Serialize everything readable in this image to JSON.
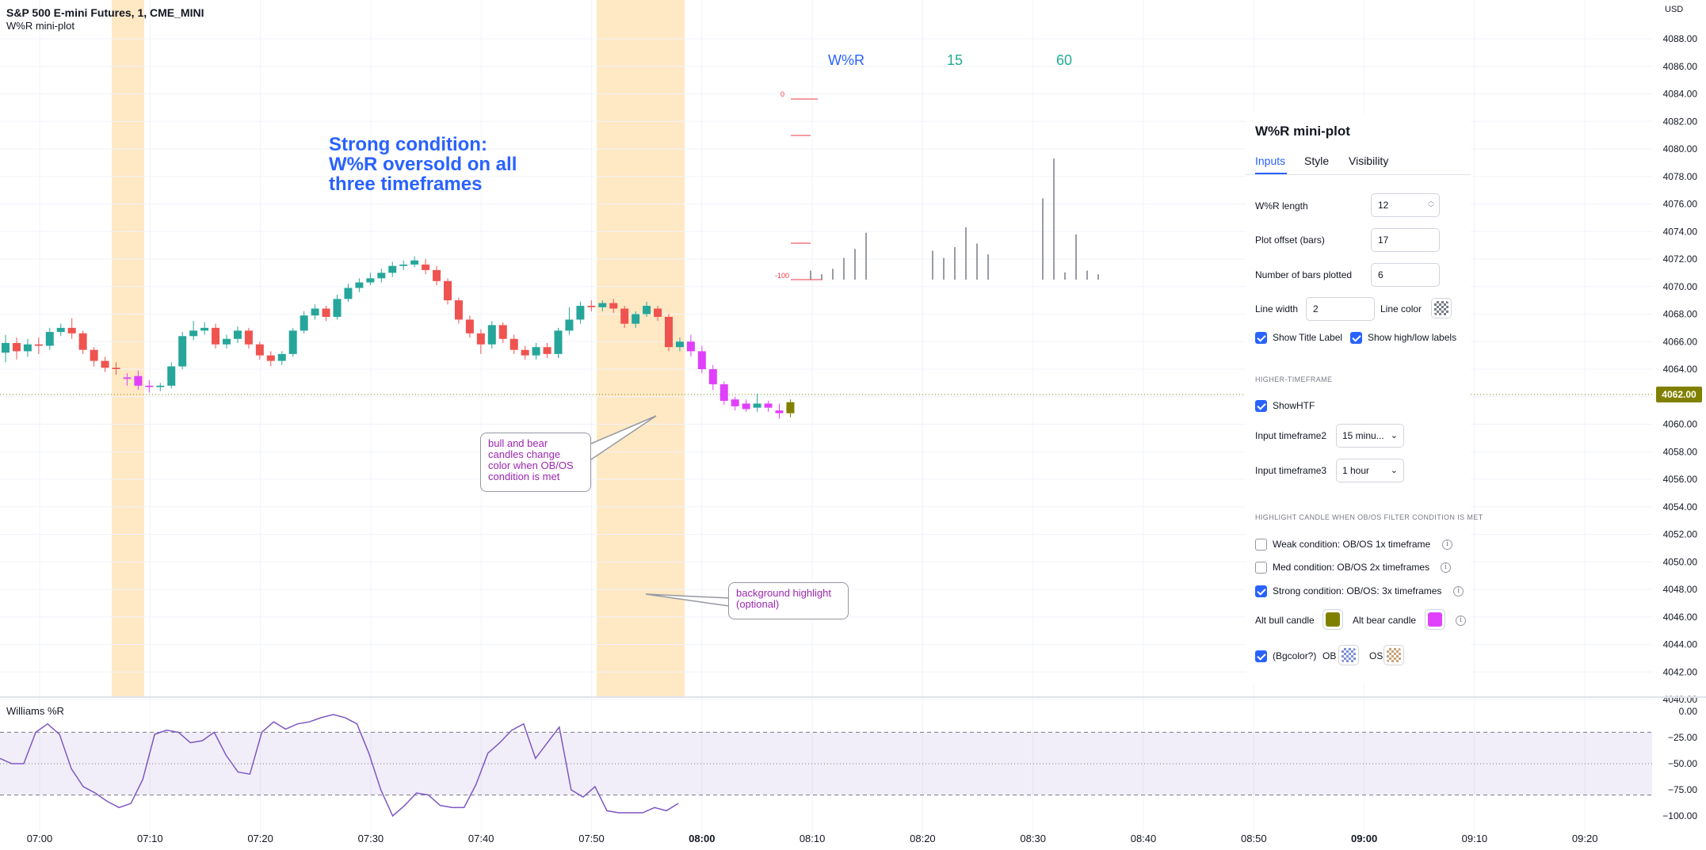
{
  "header": {
    "symbol_title": "S&P 500 E-mini Futures, 1, CME_MINI",
    "indicator_name": "W%R mini-plot",
    "currency": "USD"
  },
  "price_axis": [
    "4088.00",
    "4086.00",
    "4084.00",
    "4082.00",
    "4080.00",
    "4078.00",
    "4076.00",
    "4074.00",
    "4072.00",
    "4070.00",
    "4068.00",
    "4066.00",
    "4064.00",
    "4060.00",
    "4058.00",
    "4056.00",
    "4054.00",
    "4052.00",
    "4050.00",
    "4048.00",
    "4046.00",
    "4044.00",
    "4042.00",
    "4040.00"
  ],
  "current_price": "4062.00",
  "wr_axis": [
    "0.00",
    "−25.00",
    "−50.00",
    "−75.00",
    "−100.00"
  ],
  "wr_pane_name": "Williams %R",
  "time_axis": [
    "07:00",
    "07:10",
    "07:20",
    "07:30",
    "07:40",
    "07:50",
    "08:00",
    "08:10",
    "08:20",
    "08:30",
    "08:40",
    "08:50",
    "09:00",
    "09:10",
    "09:20"
  ],
  "annotation_main": "Strong condition: W%R oversold on all three timeframes",
  "callout_candles": "bull and bear candles change color when OB/OS condition is met",
  "callout_bg": "background highlight (optional)",
  "mini_plot": {
    "headers": [
      {
        "text": "W%R",
        "color": "#2962ff"
      },
      {
        "text": "15",
        "color": "#22ab94"
      },
      {
        "text": "60",
        "color": "#22ab94"
      }
    ],
    "top_label": "0",
    "bottom_label": "-100"
  },
  "settings": {
    "title": "W%R mini-plot",
    "tabs": [
      {
        "label": "Inputs",
        "active": true
      },
      {
        "label": "Style"
      },
      {
        "label": "Visibility"
      }
    ],
    "wr_length_label": "W%R length",
    "wr_length_value": "12",
    "plot_offset_label": "Plot offset (bars)",
    "plot_offset_value": "17",
    "bars_plotted_label": "Number of bars plotted",
    "bars_plotted_value": "6",
    "line_width_label": "Line width",
    "line_width_value": "2",
    "line_color_label": "Line color",
    "line_color": "#787b86",
    "show_title_label": "Show Title Label",
    "show_title_checked": true,
    "show_hl_label": "Show high/low labels",
    "show_hl_checked": true,
    "htf_section": "HIGHER-TIMEFRAME",
    "show_htf_label": "ShowHTF",
    "show_htf_checked": true,
    "tf2_label": "Input timeframe2",
    "tf2_value": "15 minu...",
    "tf3_label": "Input timeframe3",
    "tf3_value": "1 hour",
    "highlight_section": "HIGHLIGHT CANDLE WHEN OB/OS FILTER CONDITION IS MET",
    "weak_label": "Weak condition: OB/OS 1x timeframe",
    "weak_checked": false,
    "med_label": "Med condition: OB/OS 2x timeframes",
    "med_checked": false,
    "strong_label": "Strong condition: OB/OS: 3x timeframes",
    "strong_checked": true,
    "alt_bull_label": "Alt bull candle",
    "alt_bull_color": "#808000",
    "alt_bear_label": "Alt bear candle",
    "alt_bear_color": "#e040fb",
    "bg_label": "(Bgcolor?)",
    "bg_checked": true,
    "ob_label": "OB",
    "ob_color": "#7e8fd9",
    "os_label": "OS",
    "os_color": "#c8a27a"
  },
  "colors": {
    "bull": "#26a69a",
    "bear": "#ef5350",
    "alt_bull": "#808000",
    "alt_bear": "#e040fb",
    "highlight": "#ffe8c4",
    "wr_line": "#7e57c2"
  }
}
